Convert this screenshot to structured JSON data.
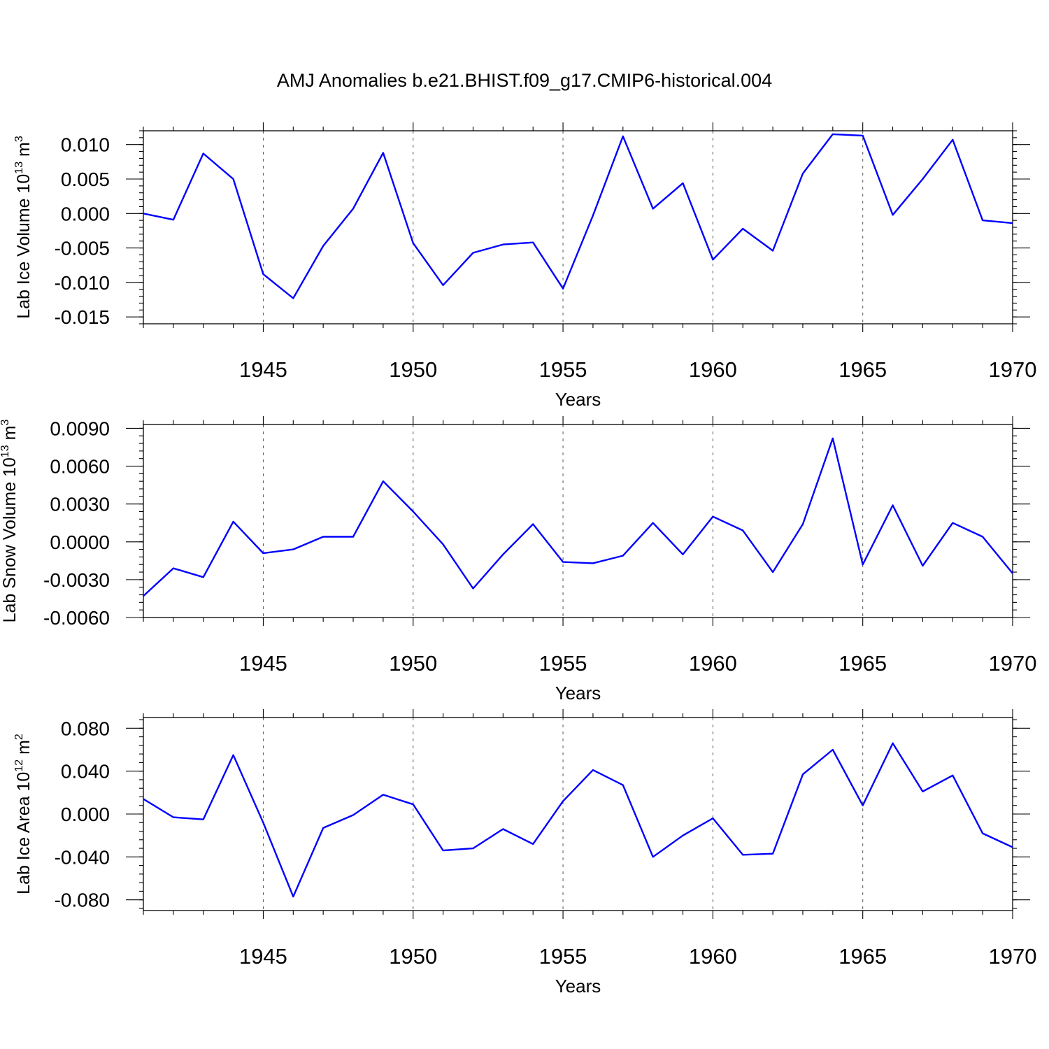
{
  "title": "AMJ Anomalies b.e21.BHIST.f09_g17.CMIP6-historical.004",
  "colors": {
    "line": "#0000ff",
    "axis": "#000000"
  },
  "chart_data": [
    {
      "type": "line",
      "ylabel_base": "Lab Ice Volume 10",
      "ylabel_exp": "13",
      "ylabel_unit": " m",
      "ylabel_unit_exp": "3",
      "xlabel": "Years",
      "xlim": [
        1941,
        1970
      ],
      "ylim": [
        -0.016,
        0.012
      ],
      "yticks": [
        -0.015,
        -0.01,
        -0.005,
        0.0,
        0.005,
        0.01
      ],
      "ytick_labels": [
        "-0.015",
        "-0.010",
        "-0.005",
        "0.000",
        "0.005",
        "0.010"
      ],
      "yminor_step": 0.001,
      "xticks": [
        1945,
        1950,
        1955,
        1960,
        1965,
        1970
      ],
      "xtick_labels": [
        "1945",
        "1950",
        "1955",
        "1960",
        "1965",
        "1970"
      ],
      "x": [
        1941,
        1942,
        1943,
        1944,
        1945,
        1946,
        1947,
        1948,
        1949,
        1950,
        1951,
        1952,
        1953,
        1954,
        1955,
        1956,
        1957,
        1958,
        1959,
        1960,
        1961,
        1962,
        1963,
        1964,
        1965,
        1966,
        1967,
        1968,
        1969,
        1970
      ],
      "series": [
        {
          "name": "Lab Ice Volume",
          "values": [
            0.0,
            -0.0009,
            0.0087,
            0.005,
            -0.0088,
            -0.0123,
            -0.0047,
            0.0007,
            0.0088,
            -0.0043,
            -0.0104,
            -0.0057,
            -0.0045,
            -0.0042,
            -0.0109,
            -0.0003,
            0.0112,
            0.0007,
            0.0044,
            -0.0067,
            -0.0022,
            -0.0054,
            0.0058,
            0.0115,
            0.0113,
            -0.0002,
            0.005,
            0.0107,
            -0.001,
            -0.0014
          ]
        }
      ]
    },
    {
      "type": "line",
      "ylabel_base": "Lab Snow Volume 10",
      "ylabel_exp": "13",
      "ylabel_unit": " m",
      "ylabel_unit_exp": "3",
      "xlabel": "Years",
      "xlim": [
        1941,
        1970
      ],
      "ylim": [
        -0.006,
        0.0093
      ],
      "yticks": [
        -0.006,
        -0.003,
        0.0,
        0.003,
        0.006,
        0.009
      ],
      "ytick_labels": [
        "-0.0060",
        "-0.0030",
        "0.0000",
        "0.0030",
        "0.0060",
        "0.0090"
      ],
      "yminor_step": 0.0006,
      "xticks": [
        1945,
        1950,
        1955,
        1960,
        1965,
        1970
      ],
      "xtick_labels": [
        "1945",
        "1950",
        "1955",
        "1960",
        "1965",
        "1970"
      ],
      "x": [
        1941,
        1942,
        1943,
        1944,
        1945,
        1946,
        1947,
        1948,
        1949,
        1950,
        1951,
        1952,
        1953,
        1954,
        1955,
        1956,
        1957,
        1958,
        1959,
        1960,
        1961,
        1962,
        1963,
        1964,
        1965,
        1966,
        1967,
        1968,
        1969,
        1970
      ],
      "series": [
        {
          "name": "Lab Snow Volume",
          "values": [
            -0.0043,
            -0.0021,
            -0.0028,
            0.0016,
            -0.0009,
            -0.0006,
            0.0004,
            0.0004,
            0.0048,
            0.0024,
            -0.0002,
            -0.0037,
            -0.001,
            0.0014,
            -0.0016,
            -0.0017,
            -0.0011,
            0.0015,
            -0.001,
            0.002,
            0.0009,
            -0.0024,
            0.0014,
            0.0082,
            -0.0018,
            0.0029,
            -0.0019,
            0.0015,
            0.0004,
            -0.0025
          ]
        }
      ]
    },
    {
      "type": "line",
      "ylabel_base": "Lab Ice Area 10",
      "ylabel_exp": "12",
      "ylabel_unit": " m",
      "ylabel_unit_exp": "2",
      "xlabel": "Years",
      "xlim": [
        1941,
        1970
      ],
      "ylim": [
        -0.09,
        0.09
      ],
      "yticks": [
        -0.08,
        -0.04,
        0.0,
        0.04,
        0.08
      ],
      "ytick_labels": [
        "-0.080",
        "-0.040",
        "0.000",
        "0.040",
        "0.080"
      ],
      "yminor_step": 0.008,
      "xticks": [
        1945,
        1950,
        1955,
        1960,
        1965,
        1970
      ],
      "xtick_labels": [
        "1945",
        "1950",
        "1955",
        "1960",
        "1965",
        "1970"
      ],
      "x": [
        1941,
        1942,
        1943,
        1944,
        1945,
        1946,
        1947,
        1948,
        1949,
        1950,
        1951,
        1952,
        1953,
        1954,
        1955,
        1956,
        1957,
        1958,
        1959,
        1960,
        1961,
        1962,
        1963,
        1964,
        1965,
        1966,
        1967,
        1968,
        1969,
        1970
      ],
      "series": [
        {
          "name": "Lab Ice Area",
          "values": [
            0.014,
            -0.003,
            -0.005,
            0.055,
            -0.008,
            -0.077,
            -0.013,
            -0.001,
            0.018,
            0.009,
            -0.034,
            -0.032,
            -0.014,
            -0.028,
            0.012,
            0.041,
            0.027,
            -0.04,
            -0.02,
            -0.004,
            -0.038,
            -0.037,
            0.037,
            0.06,
            0.008,
            0.066,
            0.021,
            0.036,
            -0.018,
            -0.031
          ]
        }
      ]
    }
  ]
}
